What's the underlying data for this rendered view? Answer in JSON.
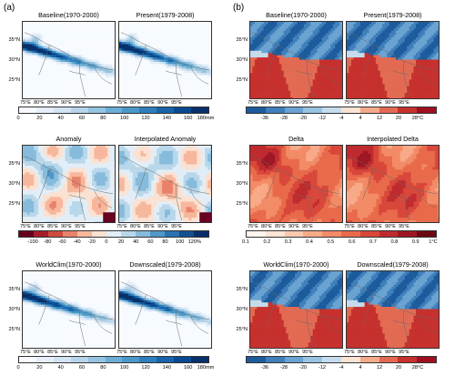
{
  "panels": {
    "a": {
      "label": "(a)",
      "rows": [
        {
          "left_title": "Baseline(1970-2000)",
          "right_title": "Present(1979-2008)",
          "lats": [
            "35°N",
            "30°N",
            "25°N"
          ],
          "lons": [
            "75°E",
            "80°E",
            "85°E",
            "90°E",
            "95°E"
          ],
          "colorbar": {
            "labels": [
              "0",
              "20",
              "40",
              "60",
              "80",
              "100",
              "120",
              "140",
              "160",
              "180mm"
            ],
            "colors": [
              "#f7fbff",
              "#e6eff9",
              "#d2e3f3",
              "#b7d4ea",
              "#94c4df",
              "#6aaed6",
              "#4a98c9",
              "#2e7ebc",
              "#1764ab",
              "#084a91",
              "#08306b"
            ]
          }
        },
        {
          "left_title": "Anomaly",
          "right_title": "Interpolated Anomaly",
          "lats": [
            "35°N",
            "30°N",
            "25°N"
          ],
          "lons": [
            "75°E",
            "80°E",
            "85°E",
            "90°E",
            "95°E"
          ],
          "colorbar": {
            "labels": [
              "-100",
              "-80",
              "-60",
              "-40",
              "-20",
              "0",
              "20",
              "40",
              "60",
              "80",
              "100",
              "120%"
            ],
            "colors": [
              "#67001f",
              "#a61c2a",
              "#cf4a3f",
              "#e9826b",
              "#f6b79d",
              "#fbe1d2",
              "#e2eef7",
              "#b9d7ea",
              "#86bbdc",
              "#4f98c9",
              "#2b72b3",
              "#13508f",
              "#082e6b"
            ]
          }
        },
        {
          "left_title": "WorldClim(1970-2000)",
          "right_title": "Downscaled(1979-2008)",
          "lats": [
            "35°N",
            "30°N",
            "25°N"
          ],
          "lons": [
            "75°E",
            "80°E",
            "85°E",
            "90°E",
            "95°E"
          ],
          "colorbar": {
            "labels": [
              "0",
              "20",
              "40",
              "60",
              "80",
              "100",
              "120",
              "140",
              "160",
              "180mm"
            ],
            "colors": [
              "#f7fbff",
              "#e6eff9",
              "#d2e3f3",
              "#b7d4ea",
              "#94c4df",
              "#6aaed6",
              "#4a98c9",
              "#2e7ebc",
              "#1764ab",
              "#084a91",
              "#08306b"
            ]
          }
        }
      ]
    },
    "b": {
      "label": "(b)",
      "rows": [
        {
          "left_title": "Baseline(1970-2000)",
          "right_title": "Present(1979-2008)",
          "lats": [
            "35°N",
            "30°N",
            "25°N"
          ],
          "lons": [
            "75°E",
            "80°E",
            "85°E",
            "90°E",
            "95°E"
          ],
          "colorbar": {
            "labels": [
              "-36",
              "-28",
              "-20",
              "-12",
              "-4",
              "4",
              "12",
              "20",
              "28°C"
            ],
            "colors": [
              "#1c5b9c",
              "#3f7fbb",
              "#6aa3d1",
              "#98c3e1",
              "#c6dced",
              "#fbe3d4",
              "#f4aa8a",
              "#e26a52",
              "#c6302d",
              "#9e1020"
            ]
          }
        },
        {
          "left_title": "Delta",
          "right_title": "Interpolated Delta",
          "lats": [
            "35°N",
            "30°N",
            "25°N"
          ],
          "lons": [
            "75°E",
            "80°E",
            "85°E",
            "90°E",
            "95°E"
          ],
          "colorbar": {
            "labels": [
              "0.1",
              "0.2",
              "0.3",
              "0.4",
              "0.5",
              "0.6",
              "0.7",
              "0.8",
              "0.9",
              "1°C"
            ],
            "colors": [
              "#fff5ee",
              "#fde4d4",
              "#fbc9af",
              "#f8aa88",
              "#f28b66",
              "#e86a4a",
              "#d8473a",
              "#bf2b2e",
              "#9e1624",
              "#6d0614"
            ]
          }
        },
        {
          "left_title": "WorldClim(1970-2000)",
          "right_title": "Downscaled(1979-2008)",
          "lats": [
            "35°N",
            "30°N",
            "25°N"
          ],
          "lons": [
            "75°E",
            "80°E",
            "85°E",
            "90°E",
            "95°E"
          ],
          "colorbar": {
            "labels": [
              "-36",
              "-28",
              "-20",
              "-12",
              "-4",
              "4",
              "12",
              "20",
              "28°C"
            ],
            "colors": [
              "#1c5b9c",
              "#3f7fbb",
              "#6aa3d1",
              "#98c3e1",
              "#c6dced",
              "#fbe3d4",
              "#f4aa8a",
              "#e26a52",
              "#c6302d",
              "#9e1020"
            ]
          }
        }
      ]
    }
  }
}
